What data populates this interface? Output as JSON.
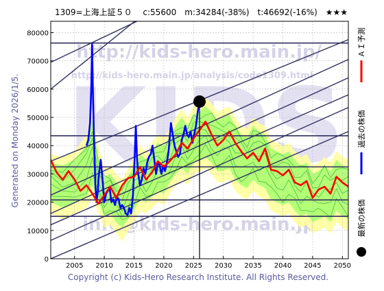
{
  "chart_data": {
    "type": "line",
    "title": "1309=上海上証５０　 c:55600　m:34284(-38%)　t:46692(-16%)　★★★",
    "generated_label": "Generated on Monday 2026/1/5.",
    "copyright": "Copyright (c) Kids-Hero Research Institute. All Rights Reserved.",
    "watermarks": {
      "url_main": "http://kids-hero.main.jp/",
      "url_analysis": "http://kids-hero.main.jp/analysis/code1309.html",
      "email": "info@kids-hero.main.jp",
      "brand": "KIDS"
    },
    "xlim": [
      2001,
      2051
    ],
    "ylim": [
      0,
      84000
    ],
    "x_ticks": [
      2005,
      2010,
      2015,
      2020,
      2025,
      2030,
      2035,
      2040,
      2045,
      2050
    ],
    "y_ticks": [
      0,
      10000,
      20000,
      30000,
      40000,
      50000,
      60000,
      70000,
      80000
    ],
    "y_tick_labels": [
      "0",
      "10000",
      "20000",
      "30000",
      "40000",
      "50000",
      "60000",
      "70000",
      "80000"
    ],
    "grid": true,
    "legend_position": "right",
    "legend": [
      {
        "label": "ＡＩ予測",
        "color": "#ff0000",
        "marker": "line"
      },
      {
        "label": "過去の株価",
        "color": "#0000ff",
        "marker": "line"
      },
      {
        "label": "最新の株価",
        "color": "#000000",
        "marker": "dot"
      }
    ],
    "colors": {
      "past": "#0000ff",
      "prediction": "#ff0000",
      "band_outer": "#ffff99",
      "band_inner": "#99ff66",
      "band_line": "#33aa33",
      "trend": "#303060",
      "hline": "#303060",
      "frame": "#000000"
    },
    "current_point": {
      "x": 2026.0,
      "y": 55600
    },
    "current_vline_x": 2026.0,
    "horizontal_lines": [
      15000,
      20800,
      32500,
      43500,
      76300
    ],
    "trend_lines": [
      {
        "x0": 2001,
        "y0": 60000,
        "x1": 2051,
        "y1": 145000
      },
      {
        "x0": 2001,
        "y0": 69500,
        "x1": 2051,
        "y1": 119500
      },
      {
        "x0": 2001,
        "y0": 34500,
        "x1": 2051,
        "y1": 77500
      },
      {
        "x0": 2001,
        "y0": 22500,
        "x1": 2051,
        "y1": 70500
      },
      {
        "x0": 2001,
        "y0": 16000,
        "x1": 2051,
        "y1": 64000
      },
      {
        "x0": 2001,
        "y0": 12000,
        "x1": 2051,
        "y1": 58000
      },
      {
        "x0": 2001,
        "y0": 6500,
        "x1": 2051,
        "y1": 53500
      },
      {
        "x0": 2001,
        "y0": 0,
        "x1": 2051,
        "y1": 45000
      }
    ],
    "series": [
      {
        "name": "過去の株価",
        "color": "#0000ff",
        "x": [
          2007.0,
          2007.3,
          2007.6,
          2007.8,
          2007.95,
          2008.1,
          2008.3,
          2008.5,
          2008.7,
          2008.9,
          2009.1,
          2009.4,
          2009.7,
          2010.0,
          2010.3,
          2010.6,
          2010.9,
          2011.2,
          2011.5,
          2011.8,
          2012.1,
          2012.4,
          2012.7,
          2013.0,
          2013.3,
          2013.6,
          2013.9,
          2014.2,
          2014.5,
          2014.8,
          2015.1,
          2015.3,
          2015.5,
          2015.7,
          2016.0,
          2016.3,
          2016.6,
          2016.9,
          2017.2,
          2017.5,
          2017.8,
          2018.1,
          2018.4,
          2018.7,
          2019.0,
          2019.3,
          2019.6,
          2019.9,
          2020.2,
          2020.5,
          2020.8,
          2021.0,
          2021.2,
          2021.5,
          2021.8,
          2022.1,
          2022.4,
          2022.7,
          2023.0,
          2023.3,
          2023.6,
          2023.9,
          2024.2,
          2024.5,
          2024.8,
          2025.1,
          2025.4,
          2025.7,
          2026.0
        ],
        "values": [
          40000,
          42000,
          48000,
          60000,
          76000,
          58000,
          40000,
          26000,
          20000,
          24000,
          30000,
          35000,
          28000,
          20000,
          23000,
          24000,
          25000,
          20000,
          21000,
          19000,
          22000,
          21000,
          18000,
          19000,
          18000,
          16000,
          15500,
          18000,
          16000,
          22000,
          36000,
          47000,
          35000,
          30000,
          26000,
          28000,
          32000,
          30000,
          34000,
          36000,
          37000,
          40000,
          35000,
          30000,
          34000,
          33000,
          30000,
          33000,
          31000,
          34000,
          38000,
          43000,
          48000,
          44000,
          40000,
          38000,
          36000,
          37000,
          42000,
          44000,
          47000,
          44000,
          43000,
          45000,
          41000,
          44000,
          47000,
          52000,
          55600
        ]
      },
      {
        "name": "ＡＩ予測",
        "color": "#ff0000",
        "x": [
          2001,
          2002,
          2003,
          2004,
          2005,
          2006,
          2007,
          2008,
          2009,
          2010,
          2011,
          2012,
          2013,
          2014,
          2015,
          2016,
          2017,
          2018,
          2019,
          2020,
          2021,
          2022,
          2023,
          2024,
          2025,
          2026,
          2027,
          2028,
          2029,
          2030,
          2031,
          2032,
          2033,
          2034,
          2035,
          2036,
          2037,
          2038,
          2039,
          2040,
          2041,
          2042,
          2043,
          2044,
          2045,
          2046,
          2047,
          2048,
          2049,
          2050,
          2051
        ],
        "values": [
          35000,
          30500,
          28000,
          31000,
          28000,
          24000,
          26000,
          23000,
          19500,
          22500,
          25500,
          21500,
          26000,
          28500,
          29000,
          32500,
          28000,
          30500,
          34500,
          32500,
          34500,
          37000,
          41000,
          39000,
          42500,
          45500,
          48500,
          44000,
          40000,
          42000,
          45000,
          41000,
          38000,
          35500,
          37500,
          34500,
          39000,
          31500,
          31000,
          29500,
          31500,
          27000,
          26000,
          27500,
          21500,
          24500,
          25500,
          23000,
          29000,
          27000,
          25500
        ]
      }
    ],
    "band": {
      "x": [
        2001,
        2003,
        2005,
        2007,
        2008,
        2009,
        2010,
        2011,
        2012,
        2013,
        2014,
        2015,
        2016,
        2017,
        2018,
        2019,
        2020,
        2021,
        2022,
        2023,
        2024,
        2025,
        2026,
        2027,
        2028,
        2029,
        2030,
        2031,
        2032,
        2033,
        2034,
        2035,
        2036,
        2037,
        2038,
        2039,
        2040,
        2041,
        2042,
        2043,
        2044,
        2045,
        2046,
        2047,
        2048,
        2049,
        2050,
        2051
      ],
      "outer_upper": [
        37000,
        36000,
        38000,
        44000,
        53000,
        40000,
        32000,
        33000,
        30000,
        28000,
        32000,
        36000,
        40000,
        38000,
        41000,
        44000,
        43000,
        46000,
        50000,
        53000,
        50000,
        54000,
        55000,
        57000,
        55000,
        52000,
        53000,
        54000,
        50000,
        47000,
        46000,
        50000,
        48000,
        47000,
        42000,
        41000,
        40000,
        41000,
        38000,
        36000,
        37000,
        33000,
        34000,
        36000,
        34000,
        38000,
        36000,
        35000
      ],
      "inner_upper": [
        34000,
        33000,
        35000,
        40000,
        49000,
        36000,
        29000,
        30000,
        27000,
        25000,
        29000,
        33000,
        37000,
        35000,
        38000,
        41000,
        40000,
        43000,
        47000,
        50000,
        47000,
        51000,
        52000,
        54000,
        52000,
        49000,
        50000,
        51000,
        47000,
        44000,
        43000,
        47000,
        45000,
        44000,
        39000,
        38000,
        37000,
        38000,
        35000,
        33000,
        34000,
        30000,
        31000,
        33000,
        31000,
        35000,
        33000,
        32000
      ],
      "inner_lower": [
        20000,
        18000,
        20000,
        22000,
        26000,
        20000,
        15000,
        16000,
        13000,
        11000,
        14000,
        17000,
        21000,
        20000,
        22000,
        24000,
        23000,
        27000,
        30000,
        32000,
        30000,
        34000,
        35000,
        36000,
        34000,
        31000,
        31000,
        32000,
        28000,
        26000,
        25000,
        28000,
        26000,
        25000,
        21000,
        20000,
        19000,
        20000,
        17000,
        15000,
        16000,
        13000,
        14000,
        15000,
        13000,
        17000,
        15000,
        14000
      ],
      "outer_lower": [
        16000,
        14000,
        16000,
        18000,
        22000,
        16000,
        11000,
        12000,
        9000,
        6000,
        10000,
        13000,
        17000,
        16000,
        18000,
        20000,
        19000,
        23000,
        26000,
        28000,
        26000,
        30000,
        31000,
        32000,
        30000,
        27000,
        27000,
        28000,
        24000,
        22000,
        21000,
        24000,
        22000,
        21000,
        17000,
        16000,
        15000,
        16000,
        13000,
        11000,
        12000,
        9000,
        10000,
        11000,
        9000,
        13000,
        11000,
        10000
      ]
    }
  }
}
